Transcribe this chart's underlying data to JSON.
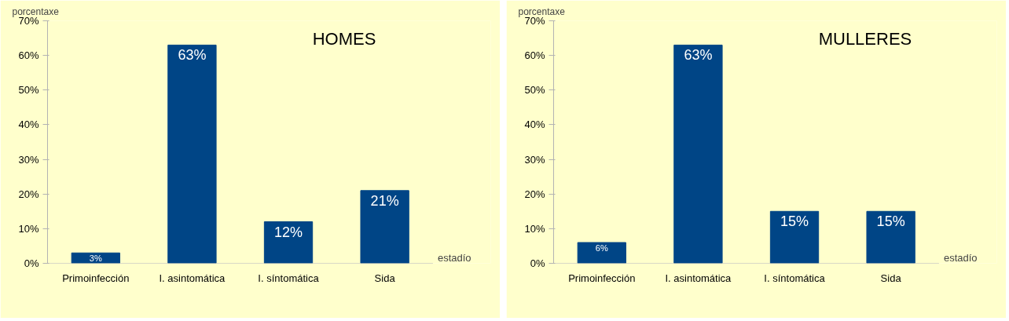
{
  "chart_data": [
    {
      "type": "bar",
      "title": "HOMES",
      "xlabel": "estadío",
      "ylabel": "porcentaxe",
      "categories": [
        "Primoinfección",
        "I. asintomática",
        "I. síntomática",
        "Sida"
      ],
      "values": [
        3,
        63,
        12,
        21
      ],
      "color": "#004586",
      "data_labels": true,
      "value_labels": [
        "3%",
        "63%",
        "12%",
        "21%"
      ],
      "ylim": [
        0,
        70
      ],
      "yticks": [
        {
          "value": 0,
          "label": "0%"
        },
        {
          "value": 10,
          "label": "10%"
        },
        {
          "value": 20,
          "label": "20%"
        },
        {
          "value": 30,
          "label": "30%"
        },
        {
          "value": 40,
          "label": "40%"
        },
        {
          "value": 50,
          "label": "50%"
        },
        {
          "value": 60,
          "label": "60%"
        },
        {
          "value": 70,
          "label": "70%"
        }
      ],
      "grid": false
    },
    {
      "type": "bar",
      "title": "MULLERES",
      "xlabel": "estadío",
      "ylabel": "porcentaxe",
      "categories": [
        "Primoinfección",
        "I. asintomática",
        "I. síntomática",
        "Sida"
      ],
      "values": [
        6,
        63,
        15,
        15
      ],
      "color": "#004586",
      "data_labels": true,
      "value_labels": [
        "6%",
        "63%",
        "15%",
        "15%"
      ],
      "ylim": [
        0,
        70
      ],
      "yticks": [
        {
          "value": 0,
          "label": "0%"
        },
        {
          "value": 10,
          "label": "10%"
        },
        {
          "value": 20,
          "label": "20%"
        },
        {
          "value": 30,
          "label": "30%"
        },
        {
          "value": 40,
          "label": "40%"
        },
        {
          "value": 50,
          "label": "50%"
        },
        {
          "value": 60,
          "label": "60%"
        },
        {
          "value": 70,
          "label": "70%"
        }
      ],
      "grid": false
    }
  ]
}
